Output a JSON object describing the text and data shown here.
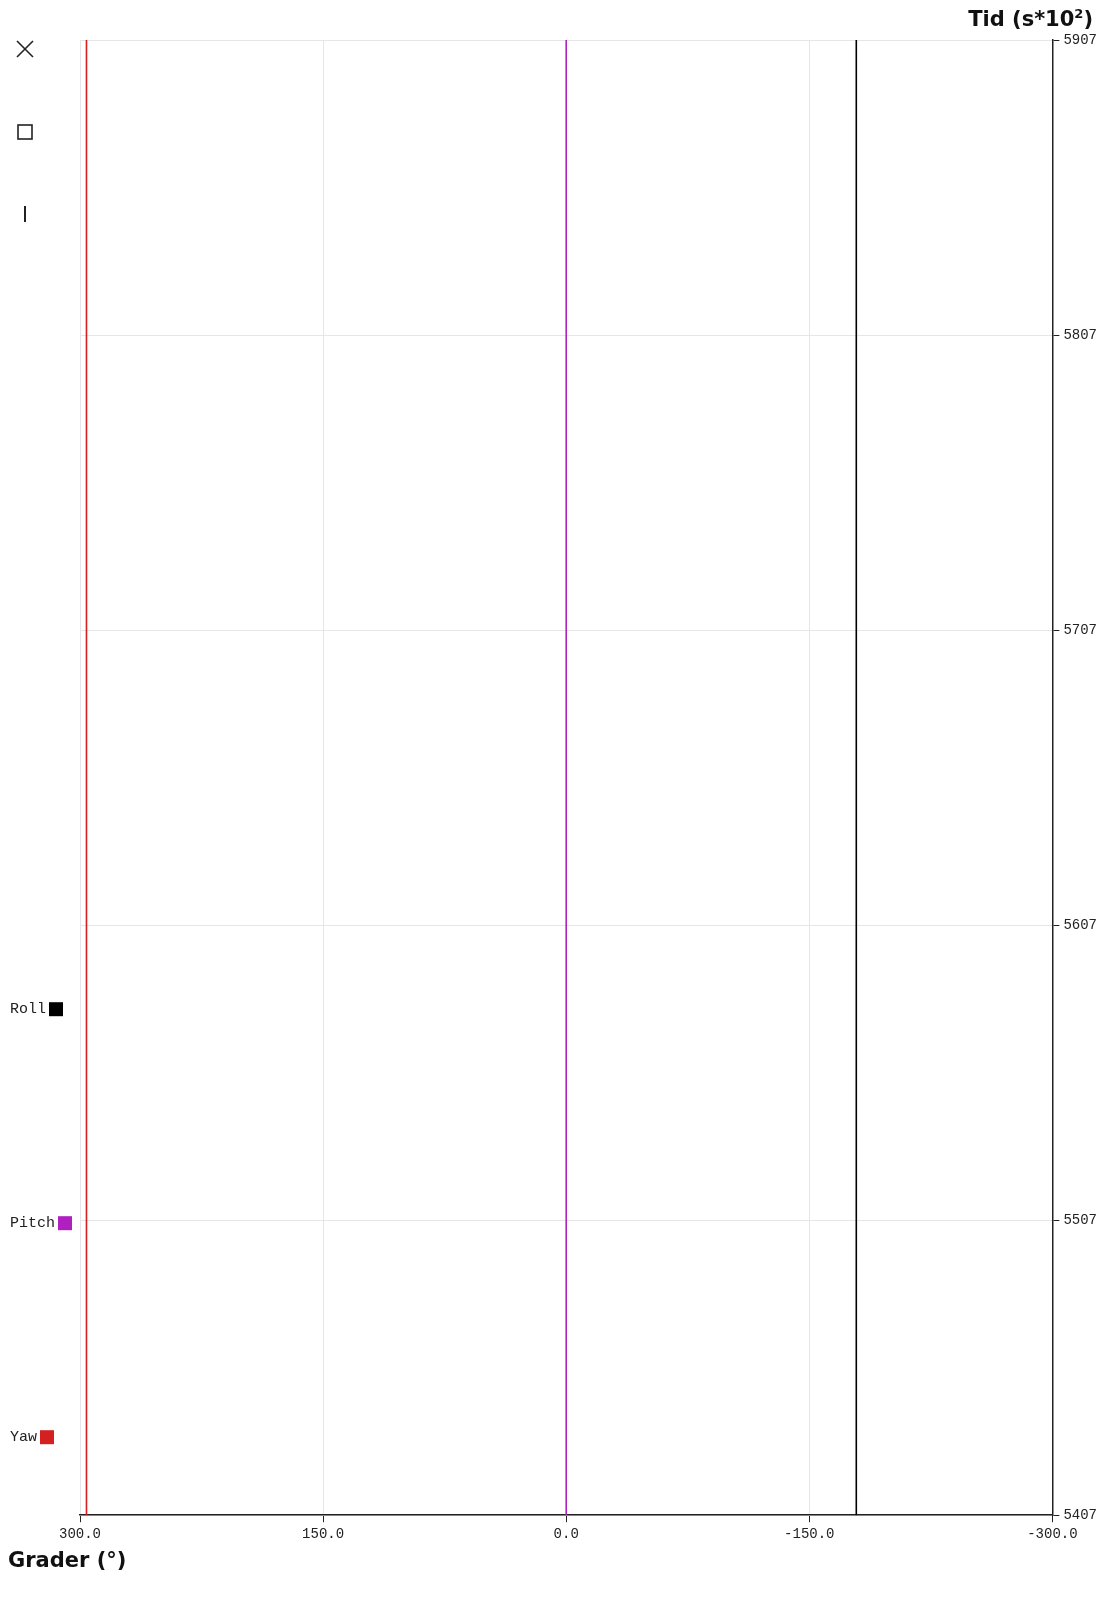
{
  "chart_data": {
    "type": "line",
    "xlabel": "Grader (°)",
    "ylabel": "Tid (s*10$^{2}$)",
    "series": [
      {
        "name": "Yaw",
        "color": "#d42020",
        "x": [
          296,
          296
        ],
        "values": [
          5407,
          5907
        ]
      },
      {
        "name": "Pitch",
        "color": "#b020c0",
        "x": [
          0,
          0
        ],
        "values": [
          5407,
          5907
        ]
      },
      {
        "name": "Roll",
        "color": "#000000",
        "x": [
          -179,
          -179
        ],
        "values": [
          5407,
          5907
        ]
      }
    ],
    "xlim": [
      300,
      -300
    ],
    "xticks": [
      {
        "value": 300,
        "label": "300.0"
      },
      {
        "value": 150,
        "label": "150.0"
      },
      {
        "value": 0,
        "label": "0.0"
      },
      {
        "value": -150,
        "label": "-150.0"
      },
      {
        "value": -300,
        "label": "-300.0"
      }
    ],
    "ylim": [
      5407,
      5907
    ],
    "yticks": [
      5407,
      5507,
      5607,
      5707,
      5807,
      5907
    ],
    "grid": true,
    "legend": "left",
    "marker": "none",
    "line_style": "solid"
  }
}
